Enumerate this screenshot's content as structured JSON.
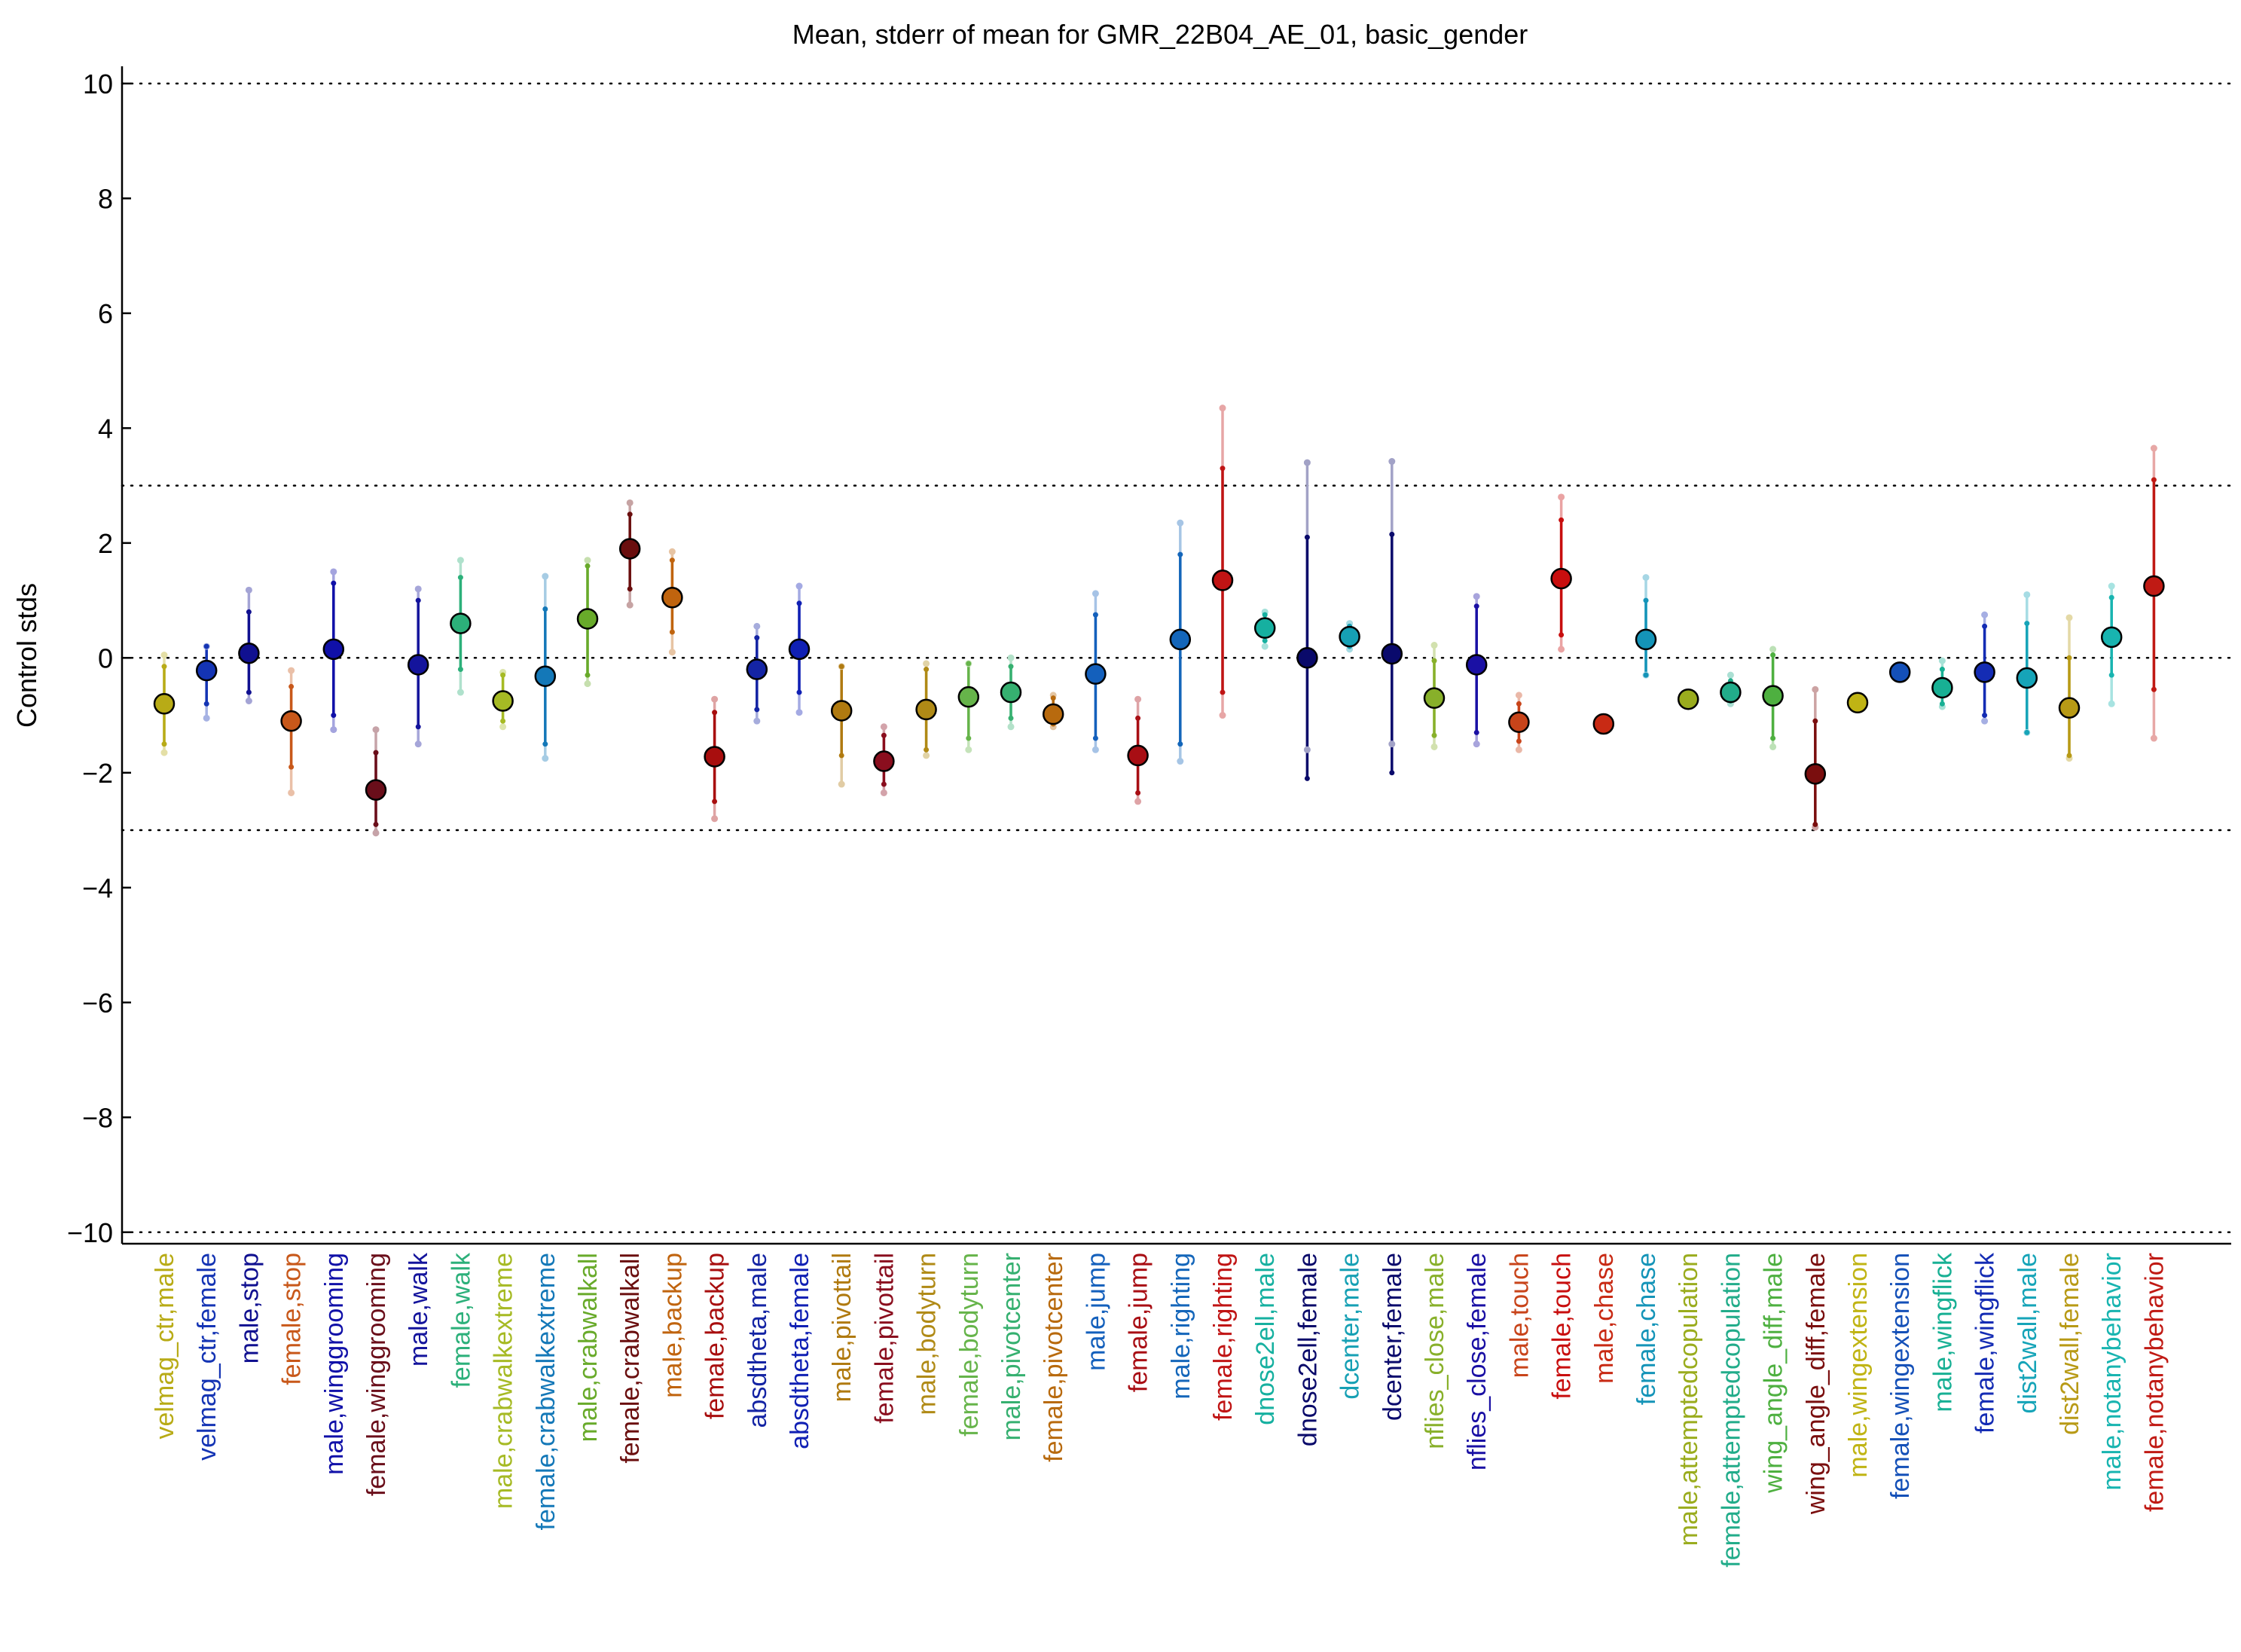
{
  "chart_data": {
    "type": "errorbar",
    "title": "Mean, stderr of mean for GMR_22B04_AE_01, basic_gender",
    "xlabel": "",
    "ylabel": "Control stds",
    "ylim": [
      -10.2,
      10.3
    ],
    "yticks": [
      10,
      8,
      6,
      4,
      2,
      0,
      -2,
      -4,
      -6,
      -8,
      -10
    ],
    "ytick_labels": [
      "10",
      "8",
      "6",
      "4",
      "2",
      "0",
      "−2",
      "−4",
      "−6",
      "−8",
      "−10"
    ],
    "reference_lines": [
      10,
      3,
      0,
      -3,
      -10
    ],
    "grid": false,
    "legend": "none",
    "categories": [
      {
        "label": "velmag_ctr,male",
        "mean": -0.8,
        "stderr_lo": -1.5,
        "stderr_hi": -0.15,
        "range_lo": -1.65,
        "range_hi": 0.05,
        "color": "#b8ab16"
      },
      {
        "label": "velmag_ctr,female",
        "mean": -0.22,
        "stderr_lo": -0.8,
        "stderr_hi": 0.2,
        "range_lo": -1.05,
        "range_hi": 0.2,
        "color": "#1434b4"
      },
      {
        "label": "male,stop",
        "mean": 0.08,
        "stderr_lo": -0.6,
        "stderr_hi": 0.8,
        "range_lo": -0.75,
        "range_hi": 1.18,
        "color": "#101090"
      },
      {
        "label": "female,stop",
        "mean": -1.1,
        "stderr_lo": -1.9,
        "stderr_hi": -0.5,
        "range_lo": -2.35,
        "range_hi": -0.22,
        "color": "#c8581a"
      },
      {
        "label": "male,winggrooming",
        "mean": 0.15,
        "stderr_lo": -1.0,
        "stderr_hi": 1.3,
        "range_lo": -1.25,
        "range_hi": 1.5,
        "color": "#1010a8"
      },
      {
        "label": "female,winggrooming",
        "mean": -2.3,
        "stderr_lo": -2.9,
        "stderr_hi": -1.65,
        "range_lo": -3.05,
        "range_hi": -1.25,
        "color": "#6a0e1a"
      },
      {
        "label": "male,walk",
        "mean": -0.12,
        "stderr_lo": -1.2,
        "stderr_hi": 1.0,
        "range_lo": -1.5,
        "range_hi": 1.2,
        "color": "#14149c"
      },
      {
        "label": "female,walk",
        "mean": 0.6,
        "stderr_lo": -0.2,
        "stderr_hi": 1.4,
        "range_lo": -0.6,
        "range_hi": 1.7,
        "color": "#2cb07a"
      },
      {
        "label": "male,crabwalkextreme",
        "mean": -0.75,
        "stderr_lo": -1.1,
        "stderr_hi": -0.3,
        "range_lo": -1.2,
        "range_hi": -0.25,
        "color": "#a6ba24"
      },
      {
        "label": "female,crabwalkextreme",
        "mean": -0.32,
        "stderr_lo": -1.5,
        "stderr_hi": 0.85,
        "range_lo": -1.75,
        "range_hi": 1.42,
        "color": "#1478b8"
      },
      {
        "label": "male,crabwalkall",
        "mean": 0.68,
        "stderr_lo": -0.3,
        "stderr_hi": 1.6,
        "range_lo": -0.45,
        "range_hi": 1.7,
        "color": "#68aa2a"
      },
      {
        "label": "female,crabwalkall",
        "mean": 1.9,
        "stderr_lo": 1.2,
        "stderr_hi": 2.5,
        "range_lo": 0.92,
        "range_hi": 2.7,
        "color": "#6a0e0e"
      },
      {
        "label": "male,backup",
        "mean": 1.05,
        "stderr_lo": 0.45,
        "stderr_hi": 1.7,
        "range_lo": 0.1,
        "range_hi": 1.85,
        "color": "#c0640e"
      },
      {
        "label": "female,backup",
        "mean": -1.72,
        "stderr_lo": -2.5,
        "stderr_hi": -0.95,
        "range_lo": -2.8,
        "range_hi": -0.72,
        "color": "#a80e0e"
      },
      {
        "label": "absdtheta,male",
        "mean": -0.2,
        "stderr_lo": -0.9,
        "stderr_hi": 0.35,
        "range_lo": -1.1,
        "range_hi": 0.55,
        "color": "#1424a4"
      },
      {
        "label": "absdtheta,female",
        "mean": 0.15,
        "stderr_lo": -0.6,
        "stderr_hi": 0.95,
        "range_lo": -0.95,
        "range_hi": 1.25,
        "color": "#1020b4"
      },
      {
        "label": "male,pivottail",
        "mean": -0.92,
        "stderr_lo": -1.7,
        "stderr_hi": -0.15,
        "range_lo": -2.2,
        "range_hi": -0.15,
        "color": "#b07a10"
      },
      {
        "label": "female,pivottail",
        "mean": -1.8,
        "stderr_lo": -2.2,
        "stderr_hi": -1.35,
        "range_lo": -2.35,
        "range_hi": -1.2,
        "color": "#8a0e1e"
      },
      {
        "label": "male,bodyturn",
        "mean": -0.9,
        "stderr_lo": -1.6,
        "stderr_hi": -0.2,
        "range_lo": -1.7,
        "range_hi": -0.1,
        "color": "#b08a16"
      },
      {
        "label": "female,bodyturn",
        "mean": -0.68,
        "stderr_lo": -1.4,
        "stderr_hi": -0.1,
        "range_lo": -1.6,
        "range_hi": -0.1,
        "color": "#66b44a"
      },
      {
        "label": "male,pivotcenter",
        "mean": -0.6,
        "stderr_lo": -1.05,
        "stderr_hi": -0.15,
        "range_lo": -1.2,
        "range_hi": 0.0,
        "color": "#36b070"
      },
      {
        "label": "female,pivotcenter",
        "mean": -0.98,
        "stderr_lo": -1.15,
        "stderr_hi": -0.7,
        "range_lo": -1.2,
        "range_hi": -0.65,
        "color": "#b86a0e"
      },
      {
        "label": "male,jump",
        "mean": -0.28,
        "stderr_lo": -1.4,
        "stderr_hi": 0.75,
        "range_lo": -1.6,
        "range_hi": 1.12,
        "color": "#1460bc"
      },
      {
        "label": "female,jump",
        "mean": -1.7,
        "stderr_lo": -2.35,
        "stderr_hi": -1.05,
        "range_lo": -2.5,
        "range_hi": -0.72,
        "color": "#a80e14"
      },
      {
        "label": "male,righting",
        "mean": 0.32,
        "stderr_lo": -1.5,
        "stderr_hi": 1.8,
        "range_lo": -1.8,
        "range_hi": 2.35,
        "color": "#1466ba"
      },
      {
        "label": "female,righting",
        "mean": 1.35,
        "stderr_lo": -0.6,
        "stderr_hi": 3.3,
        "range_lo": -1.0,
        "range_hi": 4.35,
        "color": "#c01414"
      },
      {
        "label": "dnose2ell,male",
        "mean": 0.52,
        "stderr_lo": 0.3,
        "stderr_hi": 0.75,
        "range_lo": 0.2,
        "range_hi": 0.8,
        "color": "#16b0a0"
      },
      {
        "label": "dnose2ell,female",
        "mean": 0.0,
        "stderr_lo": -2.1,
        "stderr_hi": 2.1,
        "range_lo": -1.6,
        "range_hi": 3.4,
        "color": "#0a0a6a"
      },
      {
        "label": "dcenter,male",
        "mean": 0.37,
        "stderr_lo": 0.2,
        "stderr_hi": 0.55,
        "range_lo": 0.15,
        "range_hi": 0.6,
        "color": "#16a0b4"
      },
      {
        "label": "dcenter,female",
        "mean": 0.07,
        "stderr_lo": -2.0,
        "stderr_hi": 2.15,
        "range_lo": -1.5,
        "range_hi": 3.42,
        "color": "#0a0a6c"
      },
      {
        "label": "nflies_close,male",
        "mean": -0.7,
        "stderr_lo": -1.35,
        "stderr_hi": -0.05,
        "range_lo": -1.55,
        "range_hi": 0.22,
        "color": "#88b02a"
      },
      {
        "label": "nflies_close,female",
        "mean": -0.12,
        "stderr_lo": -1.3,
        "stderr_hi": 0.9,
        "range_lo": -1.5,
        "range_hi": 1.07,
        "color": "#1a10a4"
      },
      {
        "label": "male,touch",
        "mean": -1.12,
        "stderr_lo": -1.45,
        "stderr_hi": -0.8,
        "range_lo": -1.6,
        "range_hi": -0.65,
        "color": "#c8441a"
      },
      {
        "label": "female,touch",
        "mean": 1.38,
        "stderr_lo": 0.4,
        "stderr_hi": 2.4,
        "range_lo": 0.15,
        "range_hi": 2.8,
        "color": "#c80e0e"
      },
      {
        "label": "male,chase",
        "mean": -1.15,
        "stderr_lo": -1.15,
        "stderr_hi": -1.15,
        "range_lo": -1.15,
        "range_hi": -1.15,
        "color": "#c82a14"
      },
      {
        "label": "female,chase",
        "mean": 0.32,
        "stderr_lo": -0.3,
        "stderr_hi": 1.0,
        "range_lo": -0.3,
        "range_hi": 1.4,
        "color": "#1494b8"
      },
      {
        "label": "male,attemptedcopulation",
        "mean": -0.72,
        "stderr_lo": -0.72,
        "stderr_hi": -0.72,
        "range_lo": -0.72,
        "range_hi": -0.72,
        "color": "#9aac1e"
      },
      {
        "label": "female,attemptedcopulation",
        "mean": -0.6,
        "stderr_lo": -0.75,
        "stderr_hi": -0.4,
        "range_lo": -0.8,
        "range_hi": -0.3,
        "color": "#22ac8a"
      },
      {
        "label": "wing_angle_diff,male",
        "mean": -0.66,
        "stderr_lo": -1.4,
        "stderr_hi": 0.05,
        "range_lo": -1.55,
        "range_hi": 0.15,
        "color": "#4eb040"
      },
      {
        "label": "wing_angle_diff,female",
        "mean": -2.02,
        "stderr_lo": -2.9,
        "stderr_hi": -1.1,
        "range_lo": -2.95,
        "range_hi": -0.55,
        "color": "#7a0e0e"
      },
      {
        "label": "male,wingextension",
        "mean": -0.78,
        "stderr_lo": -0.78,
        "stderr_hi": -0.78,
        "range_lo": -0.78,
        "range_hi": -0.78,
        "color": "#c0b414"
      },
      {
        "label": "female,wingextension",
        "mean": -0.25,
        "stderr_lo": -0.25,
        "stderr_hi": -0.25,
        "range_lo": -0.25,
        "range_hi": -0.25,
        "color": "#1450b8"
      },
      {
        "label": "male,wingflick",
        "mean": -0.52,
        "stderr_lo": -0.8,
        "stderr_hi": -0.2,
        "range_lo": -0.85,
        "range_hi": -0.05,
        "color": "#18b094"
      },
      {
        "label": "female,wingflick",
        "mean": -0.25,
        "stderr_lo": -1.0,
        "stderr_hi": 0.55,
        "range_lo": -1.1,
        "range_hi": 0.75,
        "color": "#142cb4"
      },
      {
        "label": "dist2wall,male",
        "mean": -0.35,
        "stderr_lo": -1.3,
        "stderr_hi": 0.6,
        "range_lo": -1.3,
        "range_hi": 1.1,
        "color": "#16a4b8"
      },
      {
        "label": "dist2wall,female",
        "mean": -0.87,
        "stderr_lo": -1.7,
        "stderr_hi": 0.0,
        "range_lo": -1.75,
        "range_hi": 0.7,
        "color": "#b89a16"
      },
      {
        "label": "male,notanybehavior",
        "mean": 0.36,
        "stderr_lo": -0.3,
        "stderr_hi": 1.05,
        "range_lo": -0.8,
        "range_hi": 1.25,
        "color": "#18b4b0"
      },
      {
        "label": "female,notanybehavior",
        "mean": 1.25,
        "stderr_lo": -0.55,
        "stderr_hi": 3.1,
        "range_lo": -1.4,
        "range_hi": 3.65,
        "color": "#c01a14"
      }
    ]
  }
}
